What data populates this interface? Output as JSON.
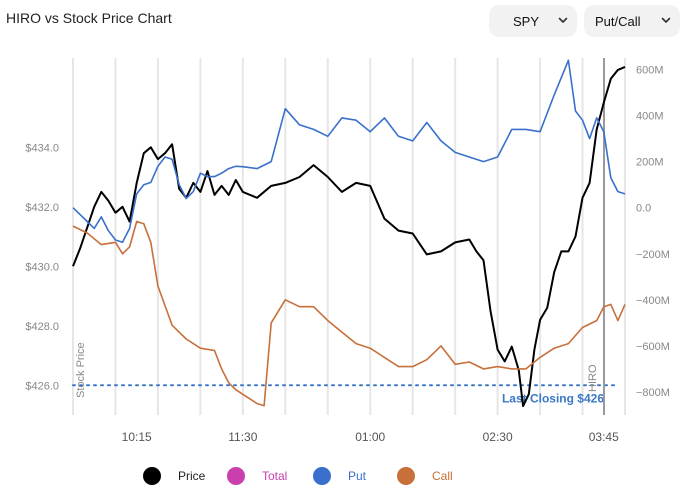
{
  "header": {
    "title": "HIRO vs Stock Price Chart",
    "symbol_dropdown": {
      "value": "SPY",
      "icon": "chevron-down-icon"
    },
    "mode_dropdown": {
      "value": "Put/Call",
      "icon": "chevron-down-icon"
    }
  },
  "chart_data": {
    "type": "line",
    "title": "HIRO vs Stock Price Chart",
    "xlabel": "",
    "ylabel_left": "Stock Price",
    "ylabel_right": "",
    "x_ticks": [
      "10:15",
      "11:30",
      "01:00",
      "02:30",
      "03:45"
    ],
    "y_left_ticks": [
      "$434.0",
      "$432.0",
      "$430.0",
      "$428.0",
      "$426.0"
    ],
    "y_left_values": [
      434,
      432,
      430,
      428,
      426
    ],
    "y_left_range": [
      425,
      437
    ],
    "y_right_ticks": [
      "600M",
      "400M",
      "200M",
      "0.0",
      "−200M",
      "−400M",
      "−600M",
      "−800M"
    ],
    "y_right_values": [
      600,
      400,
      200,
      0,
      -200,
      -400,
      -600,
      -800
    ],
    "y_right_range": [
      -900,
      650
    ],
    "time_range": [
      "09:30",
      "16:00"
    ],
    "grid": "vertical",
    "hiro_marker_label": "HIRO",
    "reference_line": {
      "label": "Last Closing $426",
      "value": 426,
      "color": "#3a78c6"
    },
    "series": [
      {
        "name": "Price",
        "axis": "left",
        "color": "#000000",
        "points": [
          [
            "09:30",
            430.0
          ],
          [
            "09:35",
            430.6
          ],
          [
            "09:40",
            431.3
          ],
          [
            "09:45",
            432.0
          ],
          [
            "09:50",
            432.5
          ],
          [
            "09:55",
            432.2
          ],
          [
            "10:00",
            431.8
          ],
          [
            "10:05",
            432.0
          ],
          [
            "10:10",
            431.5
          ],
          [
            "10:15",
            432.8
          ],
          [
            "10:20",
            433.8
          ],
          [
            "10:25",
            434.0
          ],
          [
            "10:30",
            433.6
          ],
          [
            "10:35",
            433.8
          ],
          [
            "10:40",
            434.1
          ],
          [
            "10:45",
            432.6
          ],
          [
            "10:50",
            432.3
          ],
          [
            "10:55",
            432.8
          ],
          [
            "11:00",
            432.5
          ],
          [
            "11:05",
            433.2
          ],
          [
            "11:10",
            432.4
          ],
          [
            "11:15",
            432.7
          ],
          [
            "11:20",
            432.4
          ],
          [
            "11:25",
            432.9
          ],
          [
            "11:30",
            432.5
          ],
          [
            "11:40",
            432.3
          ],
          [
            "11:50",
            432.7
          ],
          [
            "12:00",
            432.8
          ],
          [
            "12:10",
            433.0
          ],
          [
            "12:20",
            433.4
          ],
          [
            "12:30",
            433.0
          ],
          [
            "12:40",
            432.5
          ],
          [
            "12:50",
            432.8
          ],
          [
            "13:00",
            432.7
          ],
          [
            "13:10",
            431.6
          ],
          [
            "13:20",
            431.2
          ],
          [
            "13:30",
            431.1
          ],
          [
            "13:40",
            430.4
          ],
          [
            "13:50",
            430.5
          ],
          [
            "14:00",
            430.8
          ],
          [
            "14:10",
            430.9
          ],
          [
            "14:15",
            430.5
          ],
          [
            "14:20",
            430.2
          ],
          [
            "14:25",
            428.5
          ],
          [
            "14:30",
            427.2
          ],
          [
            "14:35",
            426.8
          ],
          [
            "14:40",
            427.3
          ],
          [
            "14:45",
            426.5
          ],
          [
            "14:48",
            425.3
          ],
          [
            "14:52",
            425.7
          ],
          [
            "14:56",
            427.2
          ],
          [
            "15:00",
            428.2
          ],
          [
            "15:05",
            428.6
          ],
          [
            "15:10",
            429.8
          ],
          [
            "15:15",
            430.5
          ],
          [
            "15:20",
            430.5
          ],
          [
            "15:25",
            431.0
          ],
          [
            "15:30",
            432.3
          ],
          [
            "15:35",
            432.8
          ],
          [
            "15:40",
            434.6
          ],
          [
            "15:45",
            435.5
          ],
          [
            "15:50",
            436.3
          ],
          [
            "15:55",
            436.6
          ],
          [
            "16:00",
            436.7
          ]
        ]
      },
      {
        "name": "Total",
        "axis": "right",
        "color": "#c93fae",
        "points": []
      },
      {
        "name": "Put",
        "axis": "right",
        "color": "#3a70cc",
        "points": [
          [
            "09:30",
            0
          ],
          [
            "09:35",
            -30
          ],
          [
            "09:40",
            -60
          ],
          [
            "09:45",
            -90
          ],
          [
            "09:50",
            -40
          ],
          [
            "09:55",
            -100
          ],
          [
            "10:00",
            -140
          ],
          [
            "10:05",
            -150
          ],
          [
            "10:10",
            -90
          ],
          [
            "10:15",
            60
          ],
          [
            "10:20",
            100
          ],
          [
            "10:25",
            110
          ],
          [
            "10:30",
            180
          ],
          [
            "10:35",
            220
          ],
          [
            "10:40",
            210
          ],
          [
            "10:45",
            100
          ],
          [
            "10:50",
            40
          ],
          [
            "10:55",
            70
          ],
          [
            "11:00",
            150
          ],
          [
            "11:05",
            135
          ],
          [
            "11:10",
            135
          ],
          [
            "11:15",
            150
          ],
          [
            "11:20",
            170
          ],
          [
            "11:25",
            180
          ],
          [
            "11:30",
            178
          ],
          [
            "11:40",
            170
          ],
          [
            "11:50",
            200
          ],
          [
            "12:00",
            430
          ],
          [
            "12:10",
            360
          ],
          [
            "12:20",
            340
          ],
          [
            "12:30",
            310
          ],
          [
            "12:40",
            390
          ],
          [
            "12:50",
            380
          ],
          [
            "13:00",
            330
          ],
          [
            "13:10",
            390
          ],
          [
            "13:20",
            310
          ],
          [
            "13:30",
            290
          ],
          [
            "13:40",
            370
          ],
          [
            "13:50",
            290
          ],
          [
            "14:00",
            240
          ],
          [
            "14:10",
            220
          ],
          [
            "14:20",
            200
          ],
          [
            "14:30",
            220
          ],
          [
            "14:40",
            340
          ],
          [
            "14:50",
            340
          ],
          [
            "15:00",
            330
          ],
          [
            "15:10",
            490
          ],
          [
            "15:20",
            640
          ],
          [
            "15:25",
            420
          ],
          [
            "15:30",
            380
          ],
          [
            "15:35",
            300
          ],
          [
            "15:40",
            390
          ],
          [
            "15:45",
            330
          ],
          [
            "15:50",
            130
          ],
          [
            "15:55",
            70
          ],
          [
            "16:00",
            60
          ]
        ]
      },
      {
        "name": "Call",
        "axis": "right",
        "color": "#c8703a",
        "points": [
          [
            "09:30",
            -80
          ],
          [
            "09:40",
            -110
          ],
          [
            "09:50",
            -160
          ],
          [
            "10:00",
            -150
          ],
          [
            "10:05",
            -200
          ],
          [
            "10:10",
            -170
          ],
          [
            "10:15",
            -60
          ],
          [
            "10:20",
            -70
          ],
          [
            "10:25",
            -150
          ],
          [
            "10:30",
            -340
          ],
          [
            "10:40",
            -510
          ],
          [
            "10:50",
            -570
          ],
          [
            "11:00",
            -610
          ],
          [
            "11:10",
            -620
          ],
          [
            "11:15",
            -700
          ],
          [
            "11:20",
            -760
          ],
          [
            "11:25",
            -790
          ],
          [
            "11:30",
            -810
          ],
          [
            "11:40",
            -850
          ],
          [
            "11:45",
            -860
          ],
          [
            "11:50",
            -500
          ],
          [
            "12:00",
            -400
          ],
          [
            "12:10",
            -430
          ],
          [
            "12:20",
            -430
          ],
          [
            "12:30",
            -490
          ],
          [
            "12:40",
            -540
          ],
          [
            "12:50",
            -590
          ],
          [
            "13:00",
            -610
          ],
          [
            "13:10",
            -650
          ],
          [
            "13:20",
            -690
          ],
          [
            "13:30",
            -690
          ],
          [
            "13:40",
            -660
          ],
          [
            "13:50",
            -600
          ],
          [
            "14:00",
            -680
          ],
          [
            "14:10",
            -670
          ],
          [
            "14:20",
            -700
          ],
          [
            "14:30",
            -690
          ],
          [
            "14:40",
            -700
          ],
          [
            "14:50",
            -700
          ],
          [
            "15:00",
            -650
          ],
          [
            "15:10",
            -610
          ],
          [
            "15:20",
            -590
          ],
          [
            "15:30",
            -520
          ],
          [
            "15:40",
            -490
          ],
          [
            "15:45",
            -430
          ],
          [
            "15:50",
            -420
          ],
          [
            "15:55",
            -490
          ],
          [
            "16:00",
            -420
          ]
        ]
      }
    ],
    "legend": [
      {
        "label": "Price",
        "color": "#000000",
        "text_color": "#222222"
      },
      {
        "label": "Total",
        "color": "#c93fae",
        "text_color": "#c93fae"
      },
      {
        "label": "Put",
        "color": "#3a70cc",
        "text_color": "#3a70cc"
      },
      {
        "label": "Call",
        "color": "#c8703a",
        "text_color": "#c8703a"
      }
    ]
  }
}
